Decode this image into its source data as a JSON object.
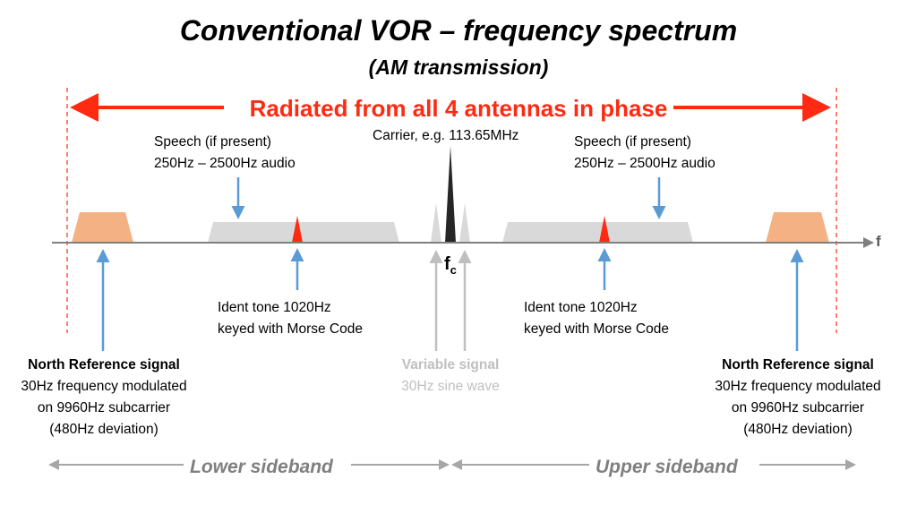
{
  "title": "Conventional VOR – frequency spectrum",
  "subtitle": "(AM transmission)",
  "banner": "Radiated from all 4 antennas in phase",
  "carrier_label": "Carrier, e.g. 113.65MHz",
  "speech_left": {
    "line1": "Speech (if present)",
    "line2": "250Hz – 2500Hz audio"
  },
  "speech_right": {
    "line1": "Speech (if present)",
    "line2": "250Hz – 2500Hz audio"
  },
  "ident_left": {
    "line1": "Ident tone 1020Hz",
    "line2": "keyed with Morse Code"
  },
  "ident_right": {
    "line1": "Ident tone 1020Hz",
    "line2": "keyed with Morse Code"
  },
  "north_left": {
    "title": "North Reference signal",
    "line1": "30Hz frequency modulated",
    "line2": "on 9960Hz subcarrier",
    "line3": "(480Hz deviation)"
  },
  "north_right": {
    "title": "North Reference signal",
    "line1": "30Hz frequency modulated",
    "line2": "on 9960Hz subcarrier",
    "line3": "(480Hz deviation)"
  },
  "variable": {
    "line1": "Variable signal",
    "line2": "30Hz sine wave"
  },
  "fc_main": "f",
  "fc_sub": "c",
  "axis_label": "f",
  "lower_sideband": "Lower sideband",
  "upper_sideband": "Upper sideband",
  "colors": {
    "red": "#ff2a12",
    "blue": "#5b9bd5",
    "orange": "#f4b183",
    "light_grey": "#d9d9d9",
    "grey": "#a6a6a6",
    "dark": "#262626"
  }
}
